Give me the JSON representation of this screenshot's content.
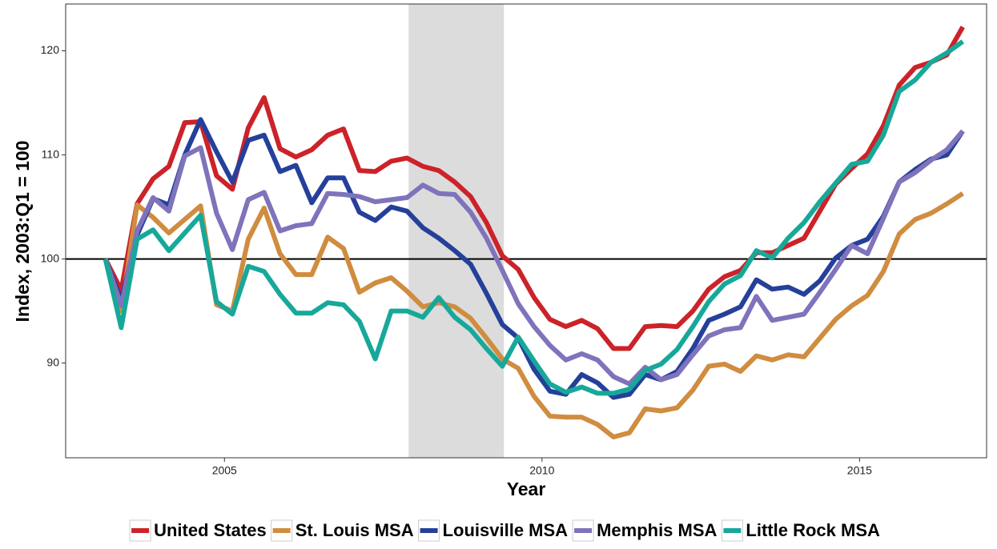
{
  "chart_data": {
    "type": "line",
    "x_label": "Year",
    "y_label": "Index, 2003:Q1 = 100",
    "x_start": 2003.125,
    "x_step": 0.25,
    "xlim": [
      2002.5,
      2017.0
    ],
    "xticks": [
      2005,
      2010,
      2015
    ],
    "ylim": [
      80.9,
      124.5
    ],
    "yticks": [
      90,
      100,
      110,
      120
    ],
    "hline": 100,
    "shading": [
      2007.9,
      2009.4
    ],
    "shading_color": "#dcdcdc",
    "legend": "bottom",
    "series": [
      {
        "name": "United States",
        "color": "#cc2229",
        "values": [
          100,
          97.0,
          105.3,
          107.7,
          108.9,
          113.1,
          113.2,
          108.0,
          106.7,
          112.6,
          115.5,
          110.6,
          109.8,
          110.5,
          111.9,
          112.5,
          108.5,
          108.4,
          109.4,
          109.7,
          108.9,
          108.5,
          107.4,
          106.0,
          103.5,
          100.3,
          99.0,
          96.3,
          94.2,
          93.5,
          94.1,
          93.3,
          91.4,
          91.4,
          93.5,
          93.6,
          93.5,
          95.0,
          97.1,
          98.3,
          98.9,
          100.6,
          100.6,
          101.3,
          102.0,
          104.6,
          107.2,
          108.7,
          110.1,
          112.8,
          116.7,
          118.4,
          118.9,
          119.6,
          122.3
        ]
      },
      {
        "name": "St. Louis MSA",
        "color": "#d08c3f",
        "values": [
          100,
          95.0,
          105.2,
          104.0,
          102.5,
          103.8,
          105.1,
          95.6,
          95.0,
          101.9,
          104.9,
          100.5,
          98.5,
          98.5,
          102.1,
          101.0,
          96.8,
          97.7,
          98.2,
          96.9,
          95.4,
          95.8,
          95.4,
          94.3,
          92.4,
          90.4,
          89.5,
          86.8,
          84.9,
          84.8,
          84.8,
          84.1,
          82.9,
          83.3,
          85.6,
          85.4,
          85.7,
          87.4,
          89.7,
          89.9,
          89.2,
          90.7,
          90.3,
          90.8,
          90.6,
          92.4,
          94.2,
          95.5,
          96.5,
          98.8,
          102.4,
          103.8,
          104.4,
          105.3,
          106.3
        ]
      },
      {
        "name": "Louisville MSA",
        "color": "#25409a",
        "values": [
          100,
          96.0,
          102.3,
          105.8,
          105.2,
          110.0,
          113.4,
          110.3,
          107.4,
          111.4,
          111.9,
          108.4,
          109.0,
          105.4,
          107.8,
          107.8,
          104.5,
          103.7,
          105.0,
          104.6,
          103.0,
          102.0,
          100.8,
          99.5,
          96.7,
          93.7,
          92.4,
          89.4,
          87.3,
          87.0,
          88.9,
          88.1,
          86.7,
          87.0,
          88.9,
          88.4,
          89.2,
          91.4,
          94.1,
          94.7,
          95.4,
          98.0,
          97.1,
          97.3,
          96.6,
          97.9,
          100.1,
          101.3,
          101.9,
          104.1,
          107.4,
          108.6,
          109.6,
          110.0,
          112.3
        ]
      },
      {
        "name": "Memphis MSA",
        "color": "#7f73bb",
        "values": [
          100,
          95.5,
          102.7,
          105.9,
          104.6,
          109.9,
          110.7,
          104.4,
          100.9,
          105.7,
          106.4,
          102.7,
          103.2,
          103.4,
          106.3,
          106.2,
          106.0,
          105.5,
          105.7,
          105.9,
          107.1,
          106.3,
          106.2,
          104.5,
          102.0,
          98.9,
          95.7,
          93.5,
          91.7,
          90.3,
          90.9,
          90.3,
          88.7,
          88.0,
          89.6,
          88.4,
          88.9,
          90.8,
          92.6,
          93.2,
          93.4,
          96.4,
          94.1,
          94.4,
          94.7,
          96.8,
          99.0,
          101.3,
          100.5,
          103.9,
          107.4,
          108.3,
          109.5,
          110.5,
          112.3
        ]
      },
      {
        "name": "Little Rock MSA",
        "color": "#17a89a",
        "values": [
          100,
          93.4,
          101.9,
          102.8,
          100.8,
          102.5,
          104.2,
          95.9,
          94.7,
          99.3,
          98.8,
          96.6,
          94.8,
          94.8,
          95.8,
          95.6,
          94.0,
          90.4,
          95.0,
          95.0,
          94.4,
          96.3,
          94.4,
          93.2,
          91.4,
          89.7,
          92.5,
          90.2,
          88.0,
          87.2,
          87.7,
          87.1,
          87.1,
          87.5,
          89.3,
          89.9,
          91.3,
          93.5,
          95.9,
          97.6,
          98.4,
          100.8,
          100.1,
          102.0,
          103.5,
          105.5,
          107.3,
          109.1,
          109.4,
          111.9,
          116.1,
          117.2,
          118.9,
          119.8,
          120.9
        ]
      }
    ]
  }
}
